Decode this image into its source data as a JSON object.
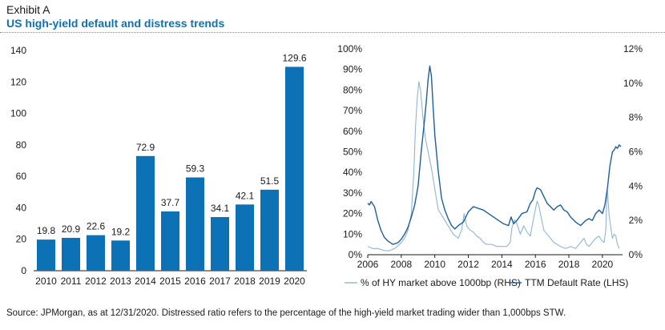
{
  "header": {
    "exhibit": "Exhibit A",
    "title": "US high-yield default and distress trends"
  },
  "footer": {
    "source": "Source: JPMorgan, as at 12/31/2020. Distressed ratio refers to the percentage of the high-yield market trading wider than 1,000bps STW."
  },
  "colors": {
    "bar": "#0d72b5",
    "ttm_line": "#1c5f9e",
    "hy_line": "#8fb6d3",
    "title": "#0d72b5"
  },
  "chart_data": [
    {
      "type": "bar",
      "categories": [
        "2010",
        "2011",
        "2012",
        "2013",
        "2014",
        "2015",
        "2016",
        "2017",
        "2018",
        "2019",
        "2020"
      ],
      "values": [
        19.8,
        20.9,
        22.6,
        19.2,
        72.9,
        37.7,
        59.3,
        34.1,
        42.1,
        51.5,
        129.6
      ],
      "value_labels": [
        "19.8",
        "20.9",
        "22.6",
        "19.2",
        "72.9",
        "37.7",
        "59.3",
        "34.1",
        "42.1",
        "51.5",
        "129.6"
      ],
      "ylim": [
        0,
        140
      ],
      "yticks": [
        "0",
        "20",
        "40",
        "60",
        "80",
        "100",
        "120",
        "140"
      ],
      "title": "",
      "xlabel": "",
      "ylabel": ""
    },
    {
      "type": "line",
      "xlim": [
        2006,
        2021.2
      ],
      "xticks": [
        "2006",
        "2008",
        "2010",
        "2012",
        "2014",
        "2016",
        "2018",
        "2020"
      ],
      "left_axis": {
        "ylim": [
          0,
          100
        ],
        "ticks": [
          "0%",
          "10%",
          "20%",
          "30%",
          "40%",
          "50%",
          "60%",
          "70%",
          "80%",
          "90%",
          "100%"
        ]
      },
      "right_axis": {
        "ylim": [
          0,
          12
        ],
        "ticks": [
          "0%",
          "2%",
          "4%",
          "6%",
          "8%",
          "10%",
          "12%"
        ]
      },
      "series": [
        {
          "name": "% of HY market above 1000bp (RHS)",
          "axis": "left",
          "x": [
            2006.0,
            2006.3,
            2006.6,
            2007.0,
            2007.3,
            2007.6,
            2007.9,
            2008.2,
            2008.4,
            2008.6,
            2008.75,
            2008.85,
            2008.95,
            2009.05,
            2009.15,
            2009.3,
            2009.45,
            2009.6,
            2009.8,
            2010.0,
            2010.2,
            2010.5,
            2010.8,
            2011.1,
            2011.4,
            2011.6,
            2011.75,
            2011.9,
            2012.1,
            2012.3,
            2012.5,
            2012.7,
            2012.9,
            2013.1,
            2013.4,
            2013.7,
            2014.0,
            2014.3,
            2014.5,
            2014.6,
            2014.75,
            2014.9,
            2015.1,
            2015.3,
            2015.5,
            2015.7,
            2015.85,
            2016.0,
            2016.1,
            2016.2,
            2016.35,
            2016.5,
            2016.7,
            2016.9,
            2017.1,
            2017.3,
            2017.5,
            2017.8,
            2018.1,
            2018.4,
            2018.7,
            2018.9,
            2019.05,
            2019.2,
            2019.4,
            2019.6,
            2019.8,
            2019.95,
            2020.1,
            2020.2,
            2020.25,
            2020.3,
            2020.4,
            2020.5,
            2020.6,
            2020.7,
            2020.8,
            2020.9,
            2021.0
          ],
          "y": [
            4,
            3,
            3,
            2,
            2,
            3,
            5,
            8,
            12,
            20,
            40,
            62,
            76,
            84,
            80,
            66,
            56,
            50,
            42,
            32,
            22,
            18,
            14,
            10,
            8,
            12,
            20,
            14,
            12,
            11,
            9,
            8,
            6,
            5,
            5,
            4,
            4,
            4,
            6,
            13,
            17,
            15,
            10,
            14,
            11,
            9,
            16,
            22,
            26,
            24,
            18,
            12,
            10,
            8,
            6,
            5,
            4,
            3,
            4,
            3,
            6,
            8,
            5,
            4,
            6,
            8,
            9,
            7,
            6,
            12,
            24,
            31,
            19,
            13,
            8,
            10,
            9,
            5,
            3
          ]
        },
        {
          "name": "TTM Default Rate (LHS)",
          "axis": "right",
          "x": [
            2006.0,
            2006.1,
            2006.2,
            2006.4,
            2006.6,
            2006.8,
            2007.0,
            2007.2,
            2007.5,
            2007.8,
            2008.0,
            2008.2,
            2008.4,
            2008.6,
            2008.8,
            2009.0,
            2009.2,
            2009.35,
            2009.5,
            2009.6,
            2009.7,
            2009.8,
            2009.9,
            2010.0,
            2010.2,
            2010.4,
            2010.6,
            2010.8,
            2011.0,
            2011.2,
            2011.4,
            2011.7,
            2012.0,
            2012.3,
            2012.6,
            2012.9,
            2013.2,
            2013.5,
            2013.8,
            2014.1,
            2014.4,
            2014.55,
            2014.7,
            2014.9,
            2015.2,
            2015.5,
            2015.7,
            2015.85,
            2016.0,
            2016.1,
            2016.3,
            2016.5,
            2016.7,
            2016.9,
            2017.1,
            2017.3,
            2017.5,
            2017.7,
            2017.9,
            2018.1,
            2018.4,
            2018.7,
            2019.0,
            2019.2,
            2019.4,
            2019.6,
            2019.8,
            2020.0,
            2020.15,
            2020.3,
            2020.45,
            2020.6,
            2020.7,
            2020.8,
            2020.9,
            2021.0,
            2021.1
          ],
          "y": [
            3.0,
            2.9,
            3.1,
            2.8,
            2.0,
            1.4,
            1.0,
            0.8,
            0.6,
            0.7,
            0.9,
            1.2,
            1.6,
            2.2,
            2.9,
            4.0,
            6.1,
            7.5,
            9.0,
            10.2,
            11.0,
            10.4,
            8.6,
            7.0,
            4.9,
            3.3,
            2.6,
            2.1,
            1.7,
            1.5,
            1.7,
            1.9,
            2.5,
            2.8,
            2.7,
            2.6,
            2.4,
            2.2,
            2.0,
            1.8,
            1.7,
            2.2,
            1.8,
            2.0,
            2.4,
            2.5,
            3.0,
            3.2,
            3.7,
            3.9,
            3.8,
            3.4,
            3.0,
            2.8,
            2.6,
            2.8,
            2.9,
            2.6,
            2.5,
            2.2,
            1.9,
            1.7,
            2.0,
            2.1,
            2.0,
            2.4,
            2.6,
            2.4,
            2.9,
            3.9,
            5.2,
            6.0,
            6.1,
            6.3,
            6.2,
            6.4,
            6.3
          ]
        }
      ],
      "legend": [
        "% of HY market above 1000bp (RHS)",
        "TTM Default Rate (LHS)"
      ],
      "legend_position": "bottom"
    }
  ]
}
